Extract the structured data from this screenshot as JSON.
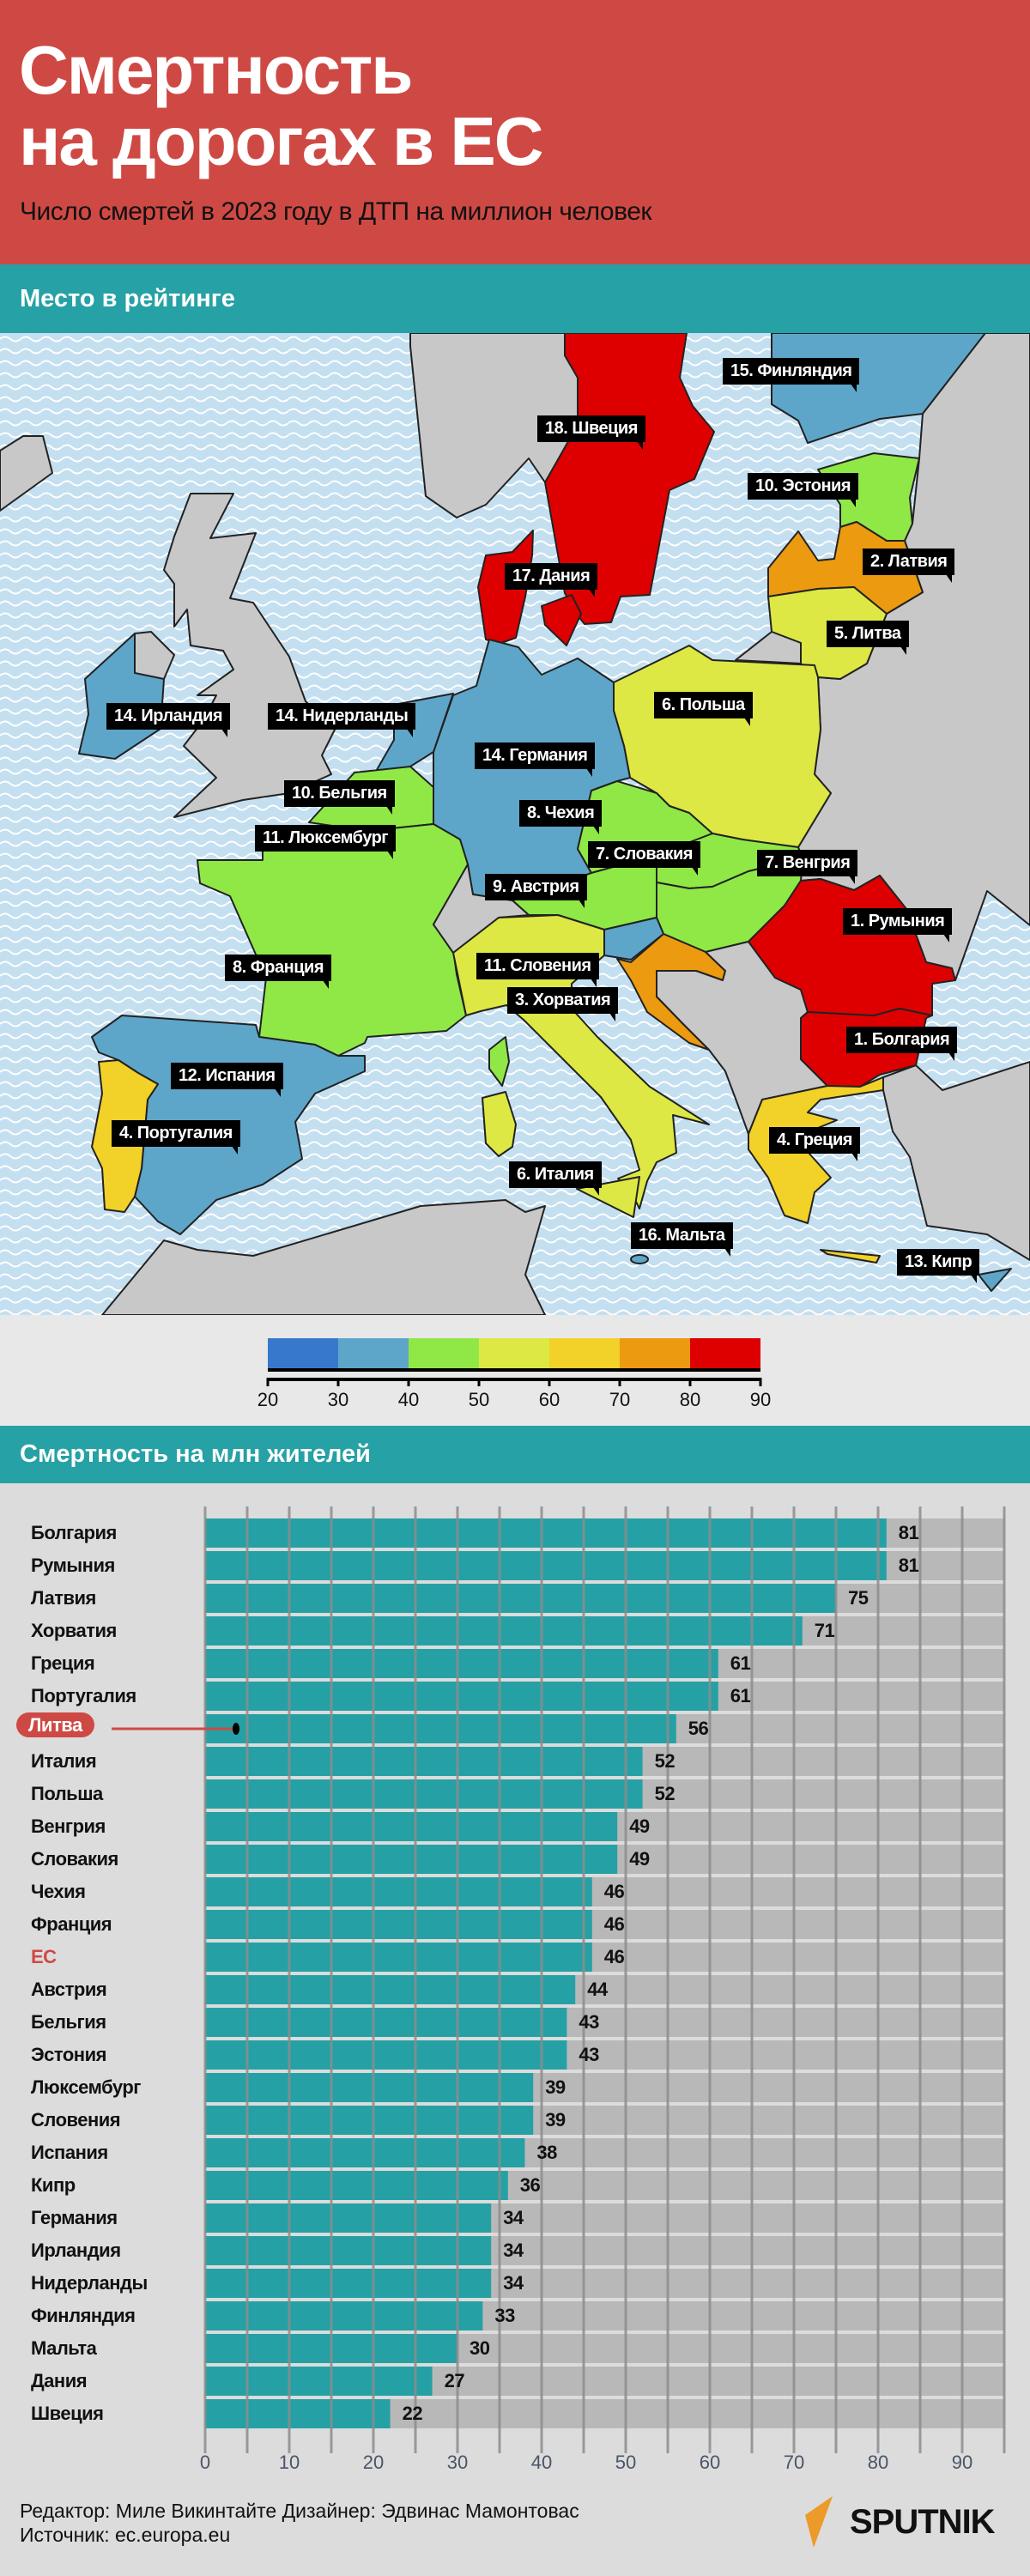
{
  "header": {
    "title_line1": "Смертность",
    "title_line2": "на дорогах в ЕС",
    "subtitle": "Число смертей в 2023 году в ДТП на миллион человек"
  },
  "map_section": {
    "title": "Место в рейтинге",
    "labels": [
      "15. Финляндия",
      "18. Швеция",
      "10. Эстония",
      "2. Латвия",
      "17. Дания",
      "5. Литва",
      "14. Ирландия",
      "14. Нидерланды",
      "6. Польша",
      "14. Германия",
      "10. Бельгия",
      "8. Чехия",
      "11. Люксембург",
      "7. Словакия",
      "7. Венгрия",
      "9. Австрия",
      "1. Румыния",
      "8. Франция",
      "11. Словения",
      "3. Хорватия",
      "1. Болгария",
      "12. Испания",
      "4. Португалия",
      "4. Греция",
      "6. Италия",
      "16. Мальта",
      "13. Кипр"
    ]
  },
  "legend": {
    "ticks": [
      "20",
      "30",
      "40",
      "50",
      "60",
      "70",
      "80",
      "90"
    ],
    "colors": [
      "#3878cc",
      "#5ea6c9",
      "#90e846",
      "#dde844",
      "#f2d128",
      "#ec9a10",
      "#de0000"
    ]
  },
  "chart_section": {
    "title": "Смертность на млн жителей"
  },
  "chart_data": {
    "type": "bar",
    "orientation": "horizontal",
    "categories": [
      "Болгария",
      "Румыния",
      "Латвия",
      "Хорватия",
      "Греция",
      "Португалия",
      "Литва",
      "Италия",
      "Польша",
      "Венгрия",
      "Словакия",
      "Чехия",
      "Франция",
      "ЕС",
      "Австрия",
      "Бельгия",
      "Эстония",
      "Люксембург",
      "Словения",
      "Испания",
      "Кипр",
      "Германия",
      "Ирландия",
      "Нидерланды",
      "Финляндия",
      "Мальта",
      "Дания",
      "Швеция"
    ],
    "values": [
      81,
      81,
      75,
      71,
      61,
      61,
      56,
      52,
      52,
      49,
      49,
      46,
      46,
      46,
      44,
      43,
      43,
      39,
      39,
      38,
      36,
      34,
      34,
      34,
      33,
      30,
      27,
      22
    ],
    "highlighted": "Литва",
    "reference": "ЕС",
    "xticks": [
      "0",
      "10",
      "20",
      "30",
      "40",
      "50",
      "60",
      "70",
      "80",
      "90"
    ],
    "xlim": [
      0,
      95
    ],
    "grid": true,
    "bar_color": "#25a1a5",
    "highlight_color": "#cf4944"
  },
  "footer": {
    "credits": "Редактор: Миле Викинтайте  Дизайнер: Эдвинас Мамонтовас",
    "source": "Источник: ec.europa.eu",
    "logo": "SPUTNIK"
  }
}
